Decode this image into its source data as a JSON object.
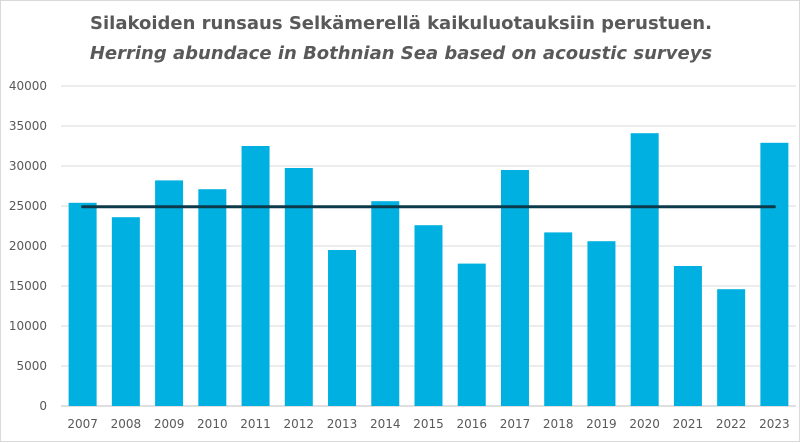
{
  "chart_data": {
    "type": "bar",
    "title": "Silakoiden runsaus Selkämerellä kaikuluotauksiin perustuen.",
    "subtitle": "Herring abundace in Bothnian Sea based on acoustic surveys",
    "categories": [
      "2007",
      "2008",
      "2009",
      "2010",
      "2011",
      "2012",
      "2013",
      "2014",
      "2015",
      "2016",
      "2017",
      "2018",
      "2019",
      "2020",
      "2021",
      "2022",
      "2023"
    ],
    "values": [
      25400,
      23600,
      28200,
      27100,
      32500,
      29750,
      19500,
      25600,
      22600,
      17800,
      29500,
      21700,
      20600,
      34100,
      17500,
      14600,
      32900
    ],
    "reference_line": 24900,
    "ylim": [
      0,
      40000
    ],
    "yticks": [
      0,
      5000,
      10000,
      15000,
      20000,
      25000,
      30000,
      35000,
      40000
    ],
    "grid": true,
    "bar_color": "#00b0e0",
    "line_color": "#0d3a4a"
  }
}
